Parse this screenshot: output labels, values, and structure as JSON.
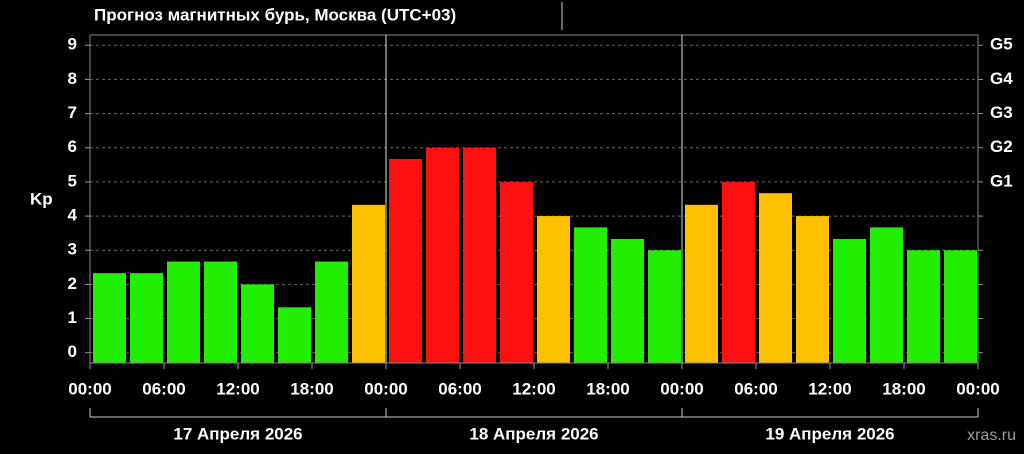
{
  "chart_data": {
    "type": "bar",
    "title": "Прогноз магнитных бурь, Москва (UTC+03)",
    "y_label": "Kp",
    "values": [
      2.33,
      2.33,
      2.67,
      2.67,
      2.0,
      1.33,
      2.67,
      4.33,
      5.67,
      6.0,
      6.0,
      5.0,
      4.0,
      3.67,
      3.33,
      3.0,
      4.33,
      5.0,
      4.67,
      4.0,
      3.33,
      3.67,
      3.0,
      3.0
    ],
    "colors": [
      "#22ee00",
      "#22ee00",
      "#22ee00",
      "#22ee00",
      "#22ee00",
      "#22ee00",
      "#22ee00",
      "#ffc000",
      "#ff1010",
      "#ff1010",
      "#ff1010",
      "#ff1010",
      "#ffc000",
      "#22ee00",
      "#22ee00",
      "#22ee00",
      "#ffc000",
      "#ff1010",
      "#ffc000",
      "#ffc000",
      "#22ee00",
      "#22ee00",
      "#22ee00",
      "#22ee00"
    ],
    "ylim": [
      -0.3,
      9.3
    ],
    "yticks": [
      0,
      1,
      2,
      3,
      4,
      5,
      6,
      7,
      8,
      9
    ],
    "y2ticks": [
      {
        "value": 5,
        "label": "G1"
      },
      {
        "value": 6,
        "label": "G2"
      },
      {
        "value": 7,
        "label": "G3"
      },
      {
        "value": 8,
        "label": "G4"
      },
      {
        "value": 9,
        "label": "G5"
      }
    ],
    "xlim": [
      0,
      72
    ],
    "xticks": [
      {
        "value": 0,
        "label": "00:00"
      },
      {
        "value": 6,
        "label": "06:00"
      },
      {
        "value": 12,
        "label": "12:00"
      },
      {
        "value": 18,
        "label": "18:00"
      },
      {
        "value": 24,
        "label": "00:00"
      },
      {
        "value": 30,
        "label": "06:00"
      },
      {
        "value": 36,
        "label": "12:00"
      },
      {
        "value": 42,
        "label": "18:00"
      },
      {
        "value": 48,
        "label": "00:00"
      },
      {
        "value": 54,
        "label": "06:00"
      },
      {
        "value": 60,
        "label": "12:00"
      },
      {
        "value": 66,
        "label": "18:00"
      },
      {
        "value": 72,
        "label": "00:00"
      }
    ],
    "days": [
      "17 Апреля 2026",
      "18 Апреля 2026",
      "19 Апреля 2026"
    ],
    "grid": true,
    "watermark": "xras.ru"
  }
}
